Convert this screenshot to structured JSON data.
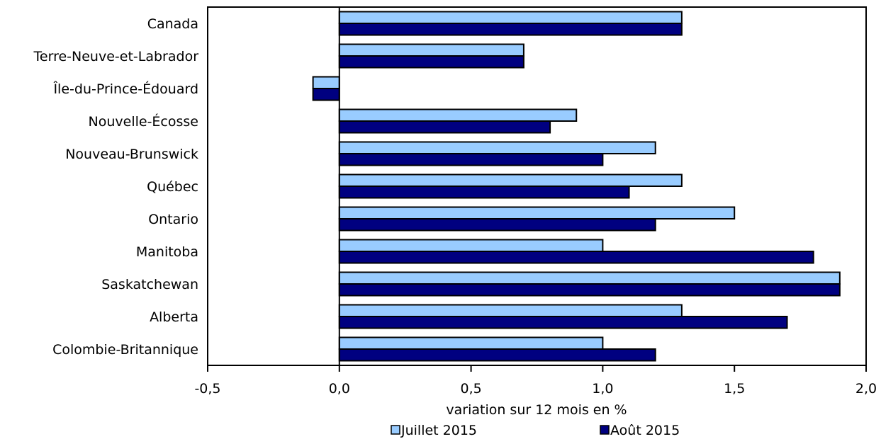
{
  "chart_data": {
    "type": "bar",
    "orientation": "horizontal",
    "categories": [
      "Canada",
      "Terre-Neuve-et-Labrador",
      "Île-du-Prince-Édouard",
      "Nouvelle-Écosse",
      "Nouveau-Brunswick",
      "Québec",
      "Ontario",
      "Manitoba",
      "Saskatchewan",
      "Alberta",
      "Colombie-Britannique"
    ],
    "series": [
      {
        "name": "Juillet 2015",
        "color": "#99ccff",
        "values": [
          1.3,
          0.7,
          -0.1,
          0.9,
          1.2,
          1.3,
          1.5,
          1.0,
          1.9,
          1.3,
          1.0
        ]
      },
      {
        "name": "Août 2015",
        "color": "#000080",
        "values": [
          1.3,
          0.7,
          -0.1,
          0.8,
          1.0,
          1.1,
          1.2,
          1.8,
          1.9,
          1.7,
          1.2
        ]
      }
    ],
    "xlabel": "variation sur 12 mois en %",
    "xlim": [
      -0.5,
      2.0
    ],
    "xticks": [
      "-0,5",
      "0,0",
      "0,5",
      "1,0",
      "1,5",
      "2,0"
    ],
    "tick_values": [
      -0.5,
      0.0,
      0.5,
      1.0,
      1.5,
      2.0
    ],
    "grid": false,
    "legend_position": "bottom"
  }
}
